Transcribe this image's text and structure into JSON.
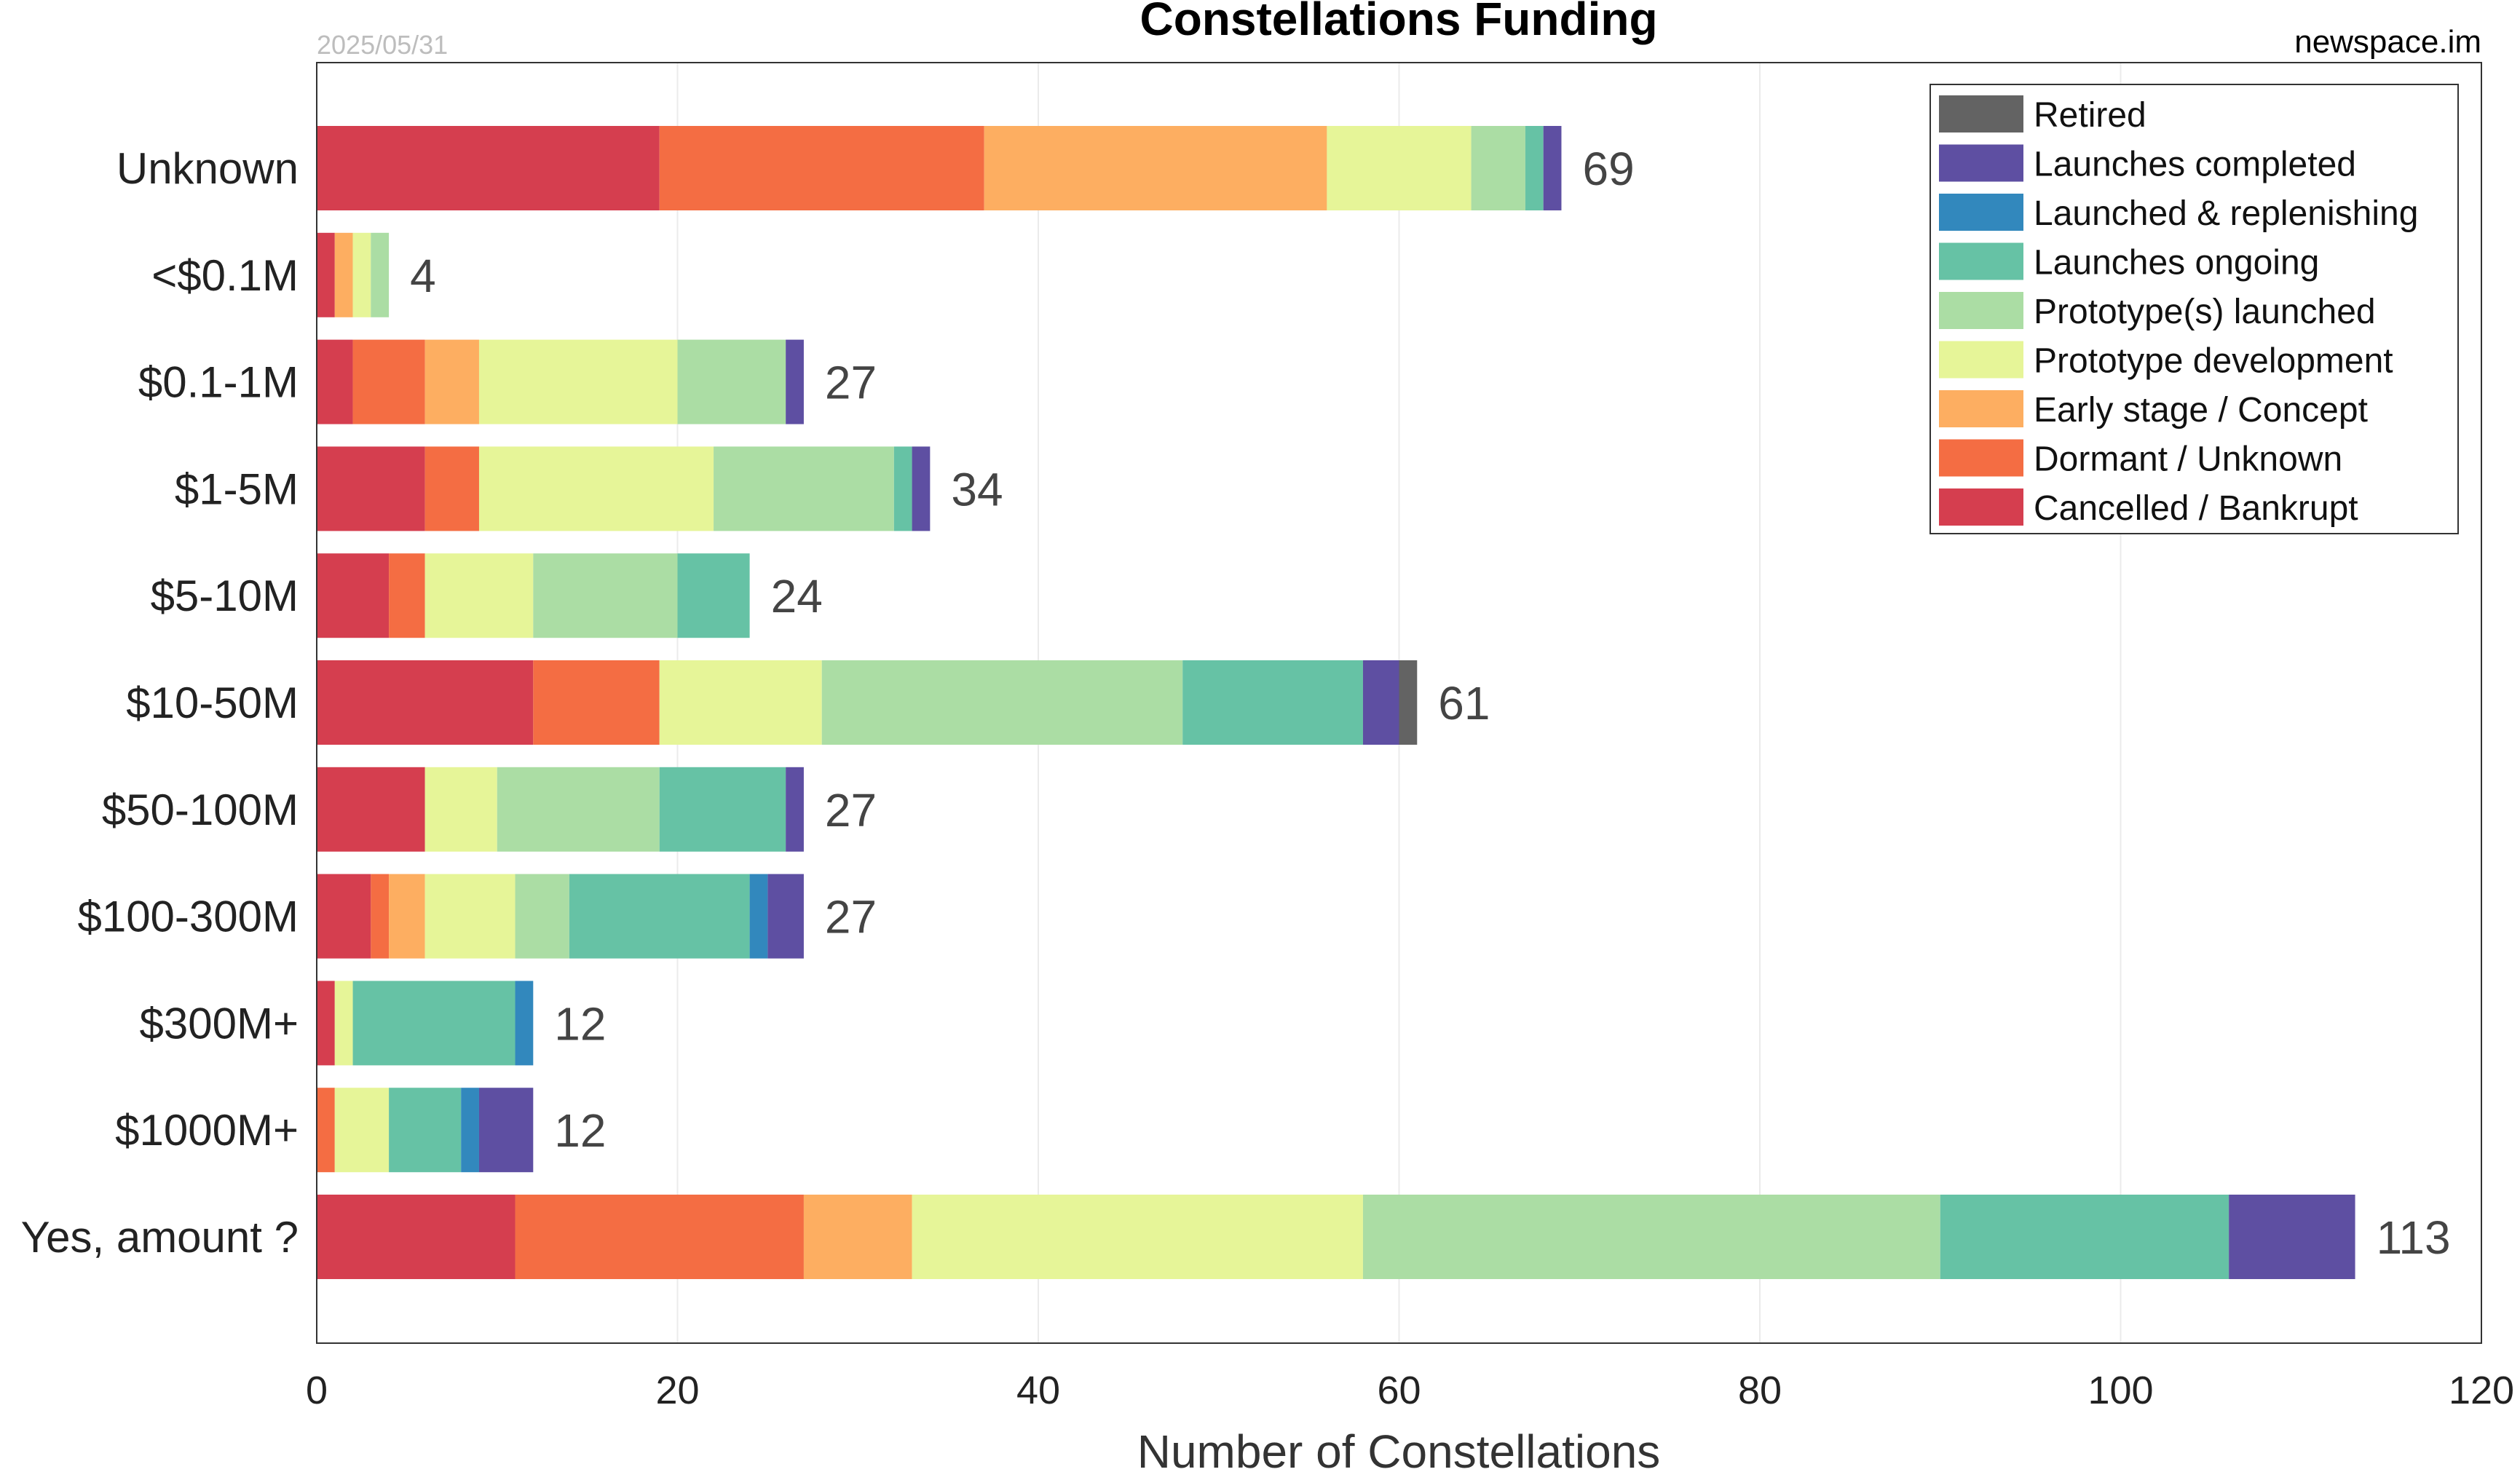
{
  "chart_data": {
    "type": "bar",
    "orientation": "horizontal",
    "stacked": true,
    "title": "Constellations Funding",
    "date": "2025/05/31",
    "source": "newspace.im",
    "xlabel": "Number of Constellations",
    "ylabel": "",
    "xlim": [
      0,
      120
    ],
    "xticks": [
      "0",
      "20",
      "40",
      "60",
      "80",
      "100",
      "120"
    ],
    "grid": "x",
    "legend_position": "top-right",
    "categories": [
      "Unknown",
      "<$0.1M",
      "$0.1-1M",
      "$1-5M",
      "$5-10M",
      "$10-50M",
      "$50-100M",
      "$100-300M",
      "$300M+",
      "$1000M+",
      "Yes, amount ?"
    ],
    "totals": [
      69,
      4,
      27,
      34,
      24,
      61,
      27,
      27,
      12,
      12,
      113
    ],
    "series": [
      {
        "name": "Cancelled / Bankrupt",
        "color": "#d53e4f",
        "values": [
          19,
          1,
          2,
          6,
          4,
          12,
          6,
          3,
          1,
          0,
          11
        ]
      },
      {
        "name": "Dormant / Unknown",
        "color": "#f46d43",
        "values": [
          18,
          0,
          4,
          3,
          2,
          7,
          0,
          1,
          0,
          1,
          16
        ]
      },
      {
        "name": "Early stage / Concept",
        "color": "#fdae61",
        "values": [
          19,
          1,
          3,
          0,
          0,
          0,
          0,
          2,
          0,
          0,
          6
        ]
      },
      {
        "name": "Prototype development",
        "color": "#e6f598",
        "values": [
          8,
          1,
          11,
          13,
          6,
          9,
          4,
          5,
          1,
          3,
          25
        ]
      },
      {
        "name": "Prototype(s) launched",
        "color": "#abdda4",
        "values": [
          3,
          1,
          6,
          10,
          8,
          20,
          9,
          3,
          0,
          0,
          32
        ]
      },
      {
        "name": "Launches ongoing",
        "color": "#66c2a5",
        "values": [
          1,
          0,
          0,
          1,
          4,
          10,
          7,
          10,
          9,
          4,
          16
        ]
      },
      {
        "name": "Launched & replenishing",
        "color": "#3288bd",
        "values": [
          0,
          0,
          0,
          0,
          0,
          0,
          0,
          1,
          1,
          1,
          0
        ]
      },
      {
        "name": "Launches completed",
        "color": "#5e4fa2",
        "values": [
          1,
          0,
          1,
          1,
          0,
          2,
          1,
          2,
          0,
          3,
          7
        ]
      },
      {
        "name": "Retired",
        "color": "#636363",
        "values": [
          0,
          0,
          0,
          0,
          0,
          1,
          0,
          0,
          0,
          0,
          0
        ]
      }
    ]
  }
}
